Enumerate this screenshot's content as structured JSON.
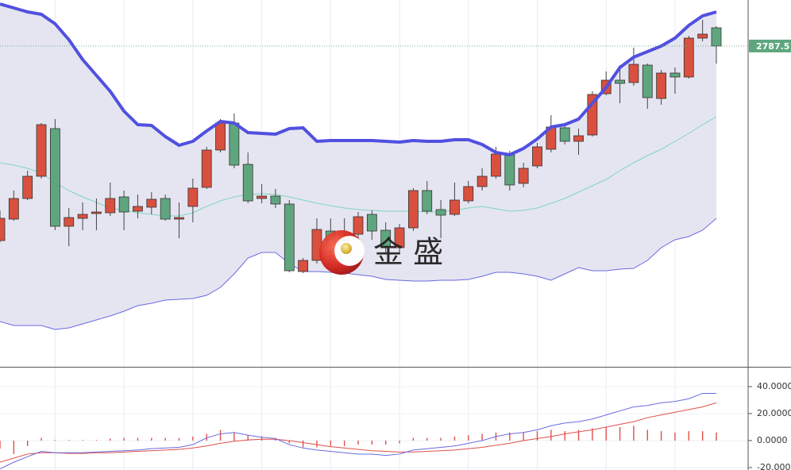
{
  "chart_data": [
    {
      "type": "candlestick",
      "up_color": "#d9503f",
      "down_color": "#5fa67f",
      "open": [
        2738.5,
        2743.9,
        2749.1,
        2754.7,
        2766.7,
        2742.1,
        2744.1,
        2745.3,
        2745.5,
        2749.5,
        2745.9,
        2746.9,
        2749.1,
        2743.9,
        2747.1,
        2751.9,
        2761.3,
        2768.1,
        2757.7,
        2749.1,
        2749.7,
        2747.7,
        2730.7,
        2733.5,
        2740.9,
        2738.5,
        2740.1,
        2745.1,
        2741.1,
        2736.7,
        2741.7,
        2751.1,
        2746.3,
        2745.1,
        2748.5,
        2752.1,
        2754.7,
        2760.1,
        2752.9,
        2757.3,
        2761.5,
        2766.9,
        2763.5,
        2765.1,
        2775.5,
        2778.9,
        2778.3,
        2782.7,
        2774.3,
        2780.7,
        2779.7,
        2789.5,
        2792.1
      ],
      "high": [
        2746.1,
        2751.1,
        2756.1,
        2768.1,
        2769.1,
        2746.7,
        2748.1,
        2749.1,
        2753.1,
        2751.1,
        2750.1,
        2750.7,
        2750.1,
        2748.1,
        2754.1,
        2762.1,
        2769.1,
        2770.5,
        2760.7,
        2752.7,
        2751.5,
        2748.7,
        2734.1,
        2744.1,
        2744.1,
        2744.1,
        2745.7,
        2746.1,
        2743.1,
        2742.7,
        2751.7,
        2753.5,
        2748.7,
        2753.1,
        2753.5,
        2756.7,
        2762.1,
        2761.1,
        2758.1,
        2763.1,
        2770.1,
        2768.1,
        2766.7,
        2776.1,
        2781.1,
        2782.7,
        2787.1,
        2783.1,
        2781.5,
        2782.1,
        2790.1,
        2794.1,
        2792.5
      ],
      "low": [
        2738.1,
        2743.5,
        2748.7,
        2754.1,
        2741.1,
        2737.1,
        2741.1,
        2741.1,
        2744.7,
        2741.1,
        2744.1,
        2745.1,
        2743.5,
        2739.1,
        2743.1,
        2751.5,
        2760.7,
        2756.7,
        2747.9,
        2747.9,
        2746.7,
        2730.5,
        2730.3,
        2732.7,
        2733.1,
        2735.1,
        2739.1,
        2738.7,
        2735.1,
        2735.1,
        2740.9,
        2745.1,
        2739.1,
        2744.7,
        2747.9,
        2751.1,
        2754.1,
        2751.1,
        2751.9,
        2756.7,
        2760.7,
        2762.7,
        2760.1,
        2764.7,
        2775.1,
        2773.1,
        2777.5,
        2771.7,
        2772.7,
        2775.5,
        2779.3,
        2788.7,
        2783.1
      ],
      "close": [
        2744.1,
        2749.1,
        2754.7,
        2767.7,
        2742.1,
        2744.3,
        2745.1,
        2745.7,
        2749.1,
        2745.7,
        2747.1,
        2748.9,
        2743.9,
        2744.3,
        2751.7,
        2761.3,
        2768.1,
        2757.5,
        2748.5,
        2749.7,
        2747.7,
        2730.9,
        2733.5,
        2741.3,
        2737.1,
        2740.1,
        2744.5,
        2740.9,
        2737.1,
        2741.7,
        2751.1,
        2745.9,
        2744.9,
        2748.7,
        2752.1,
        2754.7,
        2760.3,
        2752.5,
        2756.7,
        2762.1,
        2767.1,
        2763.5,
        2764.9,
        2775.3,
        2778.9,
        2778.1,
        2782.9,
        2774.5,
        2780.7,
        2779.7,
        2789.5,
        2790.5,
        2787.51
      ],
      "upper": [
        2798.1,
        2797.1,
        2796.1,
        2795.5,
        2793.1,
        2789.1,
        2784.1,
        2780.1,
        2776.1,
        2771.1,
        2767.7,
        2767.5,
        2764.7,
        2762.5,
        2763.5,
        2766.1,
        2768.5,
        2768.1,
        2765.7,
        2765.5,
        2765.3,
        2766.7,
        2766.9,
        2763.5,
        2763.7,
        2763.7,
        2763.7,
        2763.7,
        2763.5,
        2763.3,
        2763.7,
        2763.5,
        2763.5,
        2763.9,
        2763.9,
        2762.7,
        2760.7,
        2760.1,
        2761.7,
        2764.1,
        2767.1,
        2767.7,
        2769.1,
        2773.1,
        2777.1,
        2782.1,
        2784.7,
        2786.1,
        2787.5,
        2789.5,
        2792.7,
        2795.1,
        2796.1
      ],
      "middle": [
        2758.1,
        2757.5,
        2756.7,
        2755.5,
        2753.1,
        2751.1,
        2749.5,
        2748.1,
        2746.7,
        2746.1,
        2745.5,
        2745.1,
        2744.7,
        2744.7,
        2745.5,
        2747.1,
        2748.5,
        2749.5,
        2750.1,
        2750.3,
        2750.1,
        2749.5,
        2748.7,
        2747.9,
        2747.3,
        2746.7,
        2746.3,
        2746.1,
        2745.9,
        2745.9,
        2745.9,
        2745.7,
        2745.7,
        2746.1,
        2746.7,
        2747.1,
        2746.5,
        2745.9,
        2746.1,
        2746.7,
        2747.9,
        2749.1,
        2750.7,
        2752.3,
        2753.9,
        2756.1,
        2758.1,
        2759.9,
        2761.5,
        2763.5,
        2765.5,
        2767.7,
        2769.7
      ],
      "lower": [
        2718.1,
        2717.1,
        2717.1,
        2717.1,
        2716.1,
        2716.5,
        2717.5,
        2718.5,
        2719.5,
        2720.7,
        2722.1,
        2722.7,
        2723.5,
        2723.7,
        2723.9,
        2724.7,
        2726.7,
        2730.1,
        2734.1,
        2735.5,
        2735.5,
        2732.7,
        2730.7,
        2730.7,
        2730.5,
        2730.3,
        2729.9,
        2729.5,
        2728.7,
        2728.5,
        2728.3,
        2728.3,
        2728.5,
        2728.5,
        2728.7,
        2729.5,
        2730.5,
        2730.5,
        2730.1,
        2729.5,
        2728.5,
        2730.1,
        2731.7,
        2730.9,
        2730.9,
        2731.3,
        2731.5,
        2733.5,
        2736.7,
        2738.7,
        2739.5,
        2741.1,
        2744.1
      ],
      "upper_color": "#5050e0",
      "middle_color": "#7fd6bd",
      "lower_color": "#6a6ae0",
      "band_fill": "#e5e5f1",
      "ylim": [
        2706.7,
        2799.1
      ]
    },
    {
      "type": "macd",
      "dif_color": "#6a6ae0",
      "dea_color": "#e0504a",
      "hist_color": "#e0504a",
      "dif": [
        -21,
        -16,
        -12,
        -8,
        -9,
        -9,
        -9,
        -8.5,
        -8,
        -7.5,
        -7,
        -6,
        -5.5,
        -5,
        -3,
        2,
        5,
        6,
        4,
        2.5,
        1.5,
        -3,
        -5.5,
        -7,
        -8,
        -9,
        -10,
        -10,
        -11,
        -10,
        -7,
        -6,
        -5,
        -4,
        -2,
        0,
        3,
        5,
        6,
        8,
        11,
        13,
        14,
        16,
        19,
        22,
        25,
        26,
        28,
        29,
        31,
        35,
        35
      ],
      "dea": [
        -16,
        -13,
        -10,
        -9,
        -9,
        -9.5,
        -9.5,
        -9,
        -9,
        -8.5,
        -8,
        -7.5,
        -7,
        -6.5,
        -5.5,
        -4,
        -2,
        -0.5,
        0.5,
        1,
        1,
        0,
        -1.5,
        -3,
        -4.5,
        -5.5,
        -6.5,
        -7.5,
        -8,
        -8.5,
        -8.5,
        -8,
        -7.5,
        -7,
        -6,
        -5,
        -3.5,
        -2,
        0,
        1.5,
        3,
        5,
        6.5,
        8,
        10,
        12,
        14,
        17,
        19,
        21,
        23,
        25,
        28
      ],
      "hist": [
        -6,
        -10,
        -4,
        2,
        0.5,
        0.5,
        0.5,
        0.5,
        1.5,
        2,
        2,
        2,
        2,
        2,
        3,
        5,
        8,
        6,
        4,
        3,
        2,
        -2,
        -5,
        -5,
        -4,
        -4,
        -3,
        -3,
        -3,
        -2,
        2,
        2,
        2,
        3,
        4,
        5,
        6,
        6,
        6,
        7,
        8,
        7,
        8,
        9,
        10,
        10,
        11,
        8,
        7,
        6,
        7,
        7,
        6
      ],
      "ylim": [
        -21.8,
        54.1
      ],
      "yticks": [
        {
          "value": 40,
          "label": "40.0000"
        },
        {
          "value": 20,
          "label": "20.0000"
        },
        {
          "value": 0,
          "label": "0.0000"
        },
        {
          "value": -20,
          "label": "-20.0000"
        }
      ]
    }
  ],
  "watermark": "金 盛"
}
